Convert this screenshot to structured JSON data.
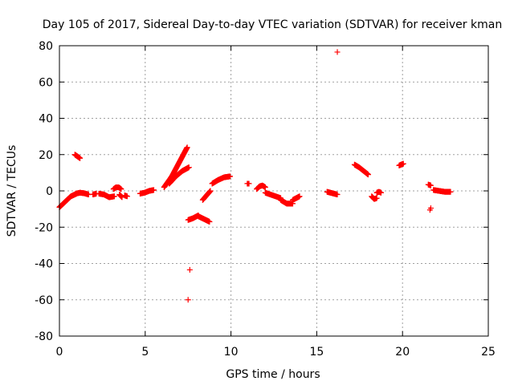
{
  "chart_data": {
    "type": "scatter",
    "title": "Day 105 of 2017, Sidereal Day-to-day VTEC variation (SDTVAR) for receiver kman",
    "xlabel": "GPS time / hours",
    "ylabel": "SDTVAR / TECUs",
    "xlim": [
      0,
      25
    ],
    "ylim": [
      -80,
      80
    ],
    "xticks": [
      0,
      5,
      10,
      15,
      20,
      25
    ],
    "xtick_labels": [
      "0",
      "5",
      "10",
      "15",
      "20",
      "25"
    ],
    "yticks": [
      -80,
      -60,
      -40,
      -20,
      0,
      20,
      40,
      60,
      80
    ],
    "ytick_labels": [
      "-80",
      "-60",
      "-40",
      "-20",
      "0",
      "20",
      "40",
      "60",
      "80"
    ],
    "grid": true,
    "marker": "+",
    "marker_color": "#ff0000",
    "segments": [
      {
        "x0": 0.0,
        "x1": 1.0,
        "y": [
          -9,
          -6,
          -3,
          -1.5
        ]
      },
      {
        "x0": 0.9,
        "x1": 1.2,
        "y": [
          20,
          18
        ]
      },
      {
        "x0": 0.95,
        "x1": 1.7,
        "y": [
          -1.5,
          -1,
          -1.3,
          -2
        ]
      },
      {
        "x0": 1.95,
        "x1": 2.15,
        "y": [
          -2,
          -1.5
        ]
      },
      {
        "x0": 2.3,
        "x1": 3.2,
        "y": [
          -1.5,
          -2,
          -3.5,
          -3
        ]
      },
      {
        "x0": 3.15,
        "x1": 3.6,
        "y": [
          1,
          2,
          2,
          1
        ]
      },
      {
        "x0": 3.5,
        "x1": 3.65,
        "y": [
          -2,
          -3.5
        ]
      },
      {
        "x0": 3.8,
        "x1": 3.95,
        "y": [
          -2.5,
          -3
        ]
      },
      {
        "x0": 4.7,
        "x1": 5.5,
        "y": [
          -1.5,
          -1,
          0,
          0.5
        ]
      },
      {
        "x0": 6.1,
        "x1": 7.45,
        "y": [
          2,
          8,
          16,
          24
        ]
      },
      {
        "x0": 6.4,
        "x1": 7.55,
        "y": [
          4,
          8,
          11,
          13
        ]
      },
      {
        "x0": 7.5,
        "x1": 8.1,
        "y": [
          -16,
          -15,
          -13.5
        ]
      },
      {
        "x0": 8.1,
        "x1": 8.75,
        "y": [
          -14,
          -15,
          -16,
          -17
        ]
      },
      {
        "x0": 8.35,
        "x1": 8.8,
        "y": [
          -5,
          -2.5,
          0
        ]
      },
      {
        "x0": 8.9,
        "x1": 9.95,
        "y": [
          4,
          6,
          7.5,
          8
        ]
      },
      {
        "x0": 10.95,
        "x1": 11.05,
        "y": [
          4,
          4
        ]
      },
      {
        "x0": 11.5,
        "x1": 12.0,
        "y": [
          1,
          2.5,
          3,
          2
        ]
      },
      {
        "x0": 12.0,
        "x1": 12.9,
        "y": [
          -1,
          -2.5,
          -4
        ]
      },
      {
        "x0": 12.9,
        "x1": 13.6,
        "y": [
          -5,
          -7,
          -7
        ]
      },
      {
        "x0": 13.6,
        "x1": 14.0,
        "y": [
          -5,
          -3
        ]
      },
      {
        "x0": 15.6,
        "x1": 16.2,
        "y": [
          -0.5,
          -1,
          -1.5,
          -2
        ]
      },
      {
        "x0": 17.2,
        "x1": 18.0,
        "y": [
          14.5,
          13,
          11,
          9
        ]
      },
      {
        "x0": 18.2,
        "x1": 18.5,
        "y": [
          -3,
          -4.5,
          -4
        ]
      },
      {
        "x0": 18.5,
        "x1": 18.75,
        "y": [
          -1,
          -0.5,
          -1
        ]
      },
      {
        "x0": 19.8,
        "x1": 20.05,
        "y": [
          14,
          14.5,
          15
        ]
      },
      {
        "x0": 21.5,
        "x1": 21.65,
        "y": [
          3.5,
          3
        ]
      },
      {
        "x0": 21.8,
        "x1": 22.8,
        "y": [
          0.5,
          0,
          -0.5,
          -0.5
        ]
      }
    ],
    "points": [
      {
        "x": 7.5,
        "y": -60
      },
      {
        "x": 7.6,
        "y": -43.5
      },
      {
        "x": 16.2,
        "y": 76.5
      },
      {
        "x": 21.65,
        "y": -9.5
      },
      {
        "x": 21.6,
        "y": -10.5
      }
    ]
  }
}
